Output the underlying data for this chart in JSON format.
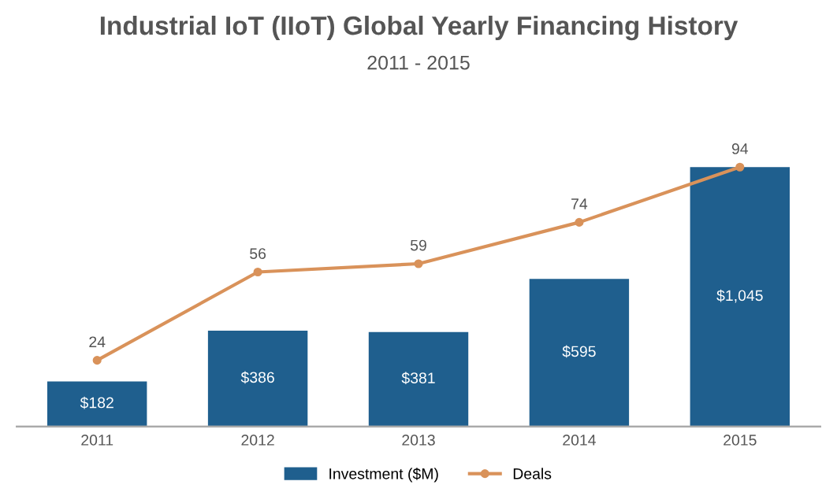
{
  "chart_data": {
    "type": "bar",
    "title": "Industrial IoT (IIoT) Global Yearly Financing History",
    "subtitle": "2011 - 2015",
    "categories": [
      "2011",
      "2012",
      "2013",
      "2014",
      "2015"
    ],
    "series": [
      {
        "name": "Investment ($M)",
        "color": "#1f5f8e",
        "values": [
          182,
          386,
          381,
          595,
          1045
        ],
        "value_labels": [
          "$182",
          "$386",
          "$381",
          "$595",
          "$1,045"
        ]
      },
      {
        "name": "Deals",
        "type": "line",
        "axis": "y2",
        "color": "#d9925a",
        "values": [
          24,
          56,
          59,
          74,
          94
        ],
        "value_labels": [
          "24",
          "56",
          "59",
          "74",
          "94"
        ]
      }
    ],
    "legend": "bottom",
    "marker": "circle",
    "line_style": "solid",
    "grid": false
  }
}
